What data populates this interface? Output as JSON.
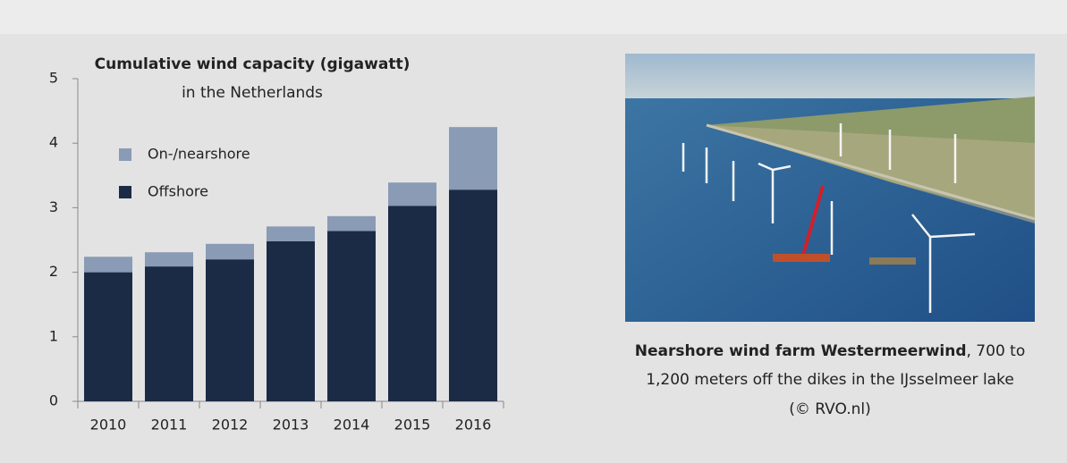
{
  "chart_data": {
    "type": "stacked-bar",
    "title": "Cumulative wind capacity (gigawatt)",
    "subtitle": "in the Netherlands",
    "categories": [
      "2010",
      "2011",
      "2012",
      "2013",
      "2014",
      "2015",
      "2016"
    ],
    "series": [
      {
        "name": "Offshore",
        "color": "#1c2b45",
        "values": [
          2.0,
          2.09,
          2.2,
          2.48,
          2.64,
          3.03,
          3.28
        ]
      },
      {
        "name": "On-/nearshore",
        "color": "#8a9bb5",
        "values": [
          0.24,
          0.22,
          0.24,
          0.23,
          0.23,
          0.36,
          0.97
        ]
      }
    ],
    "ylim": [
      0,
      5
    ],
    "yticks": [
      0,
      1,
      2,
      3,
      4,
      5
    ],
    "grid": false
  },
  "photo": {
    "caption": {
      "bold": "Nearshore wind farm Westermeerwind",
      "line1": ", 700 to",
      "line2": "1,200 meters off the dikes in the IJsselmeer lake",
      "line3": "(© RVO.nl)"
    }
  }
}
